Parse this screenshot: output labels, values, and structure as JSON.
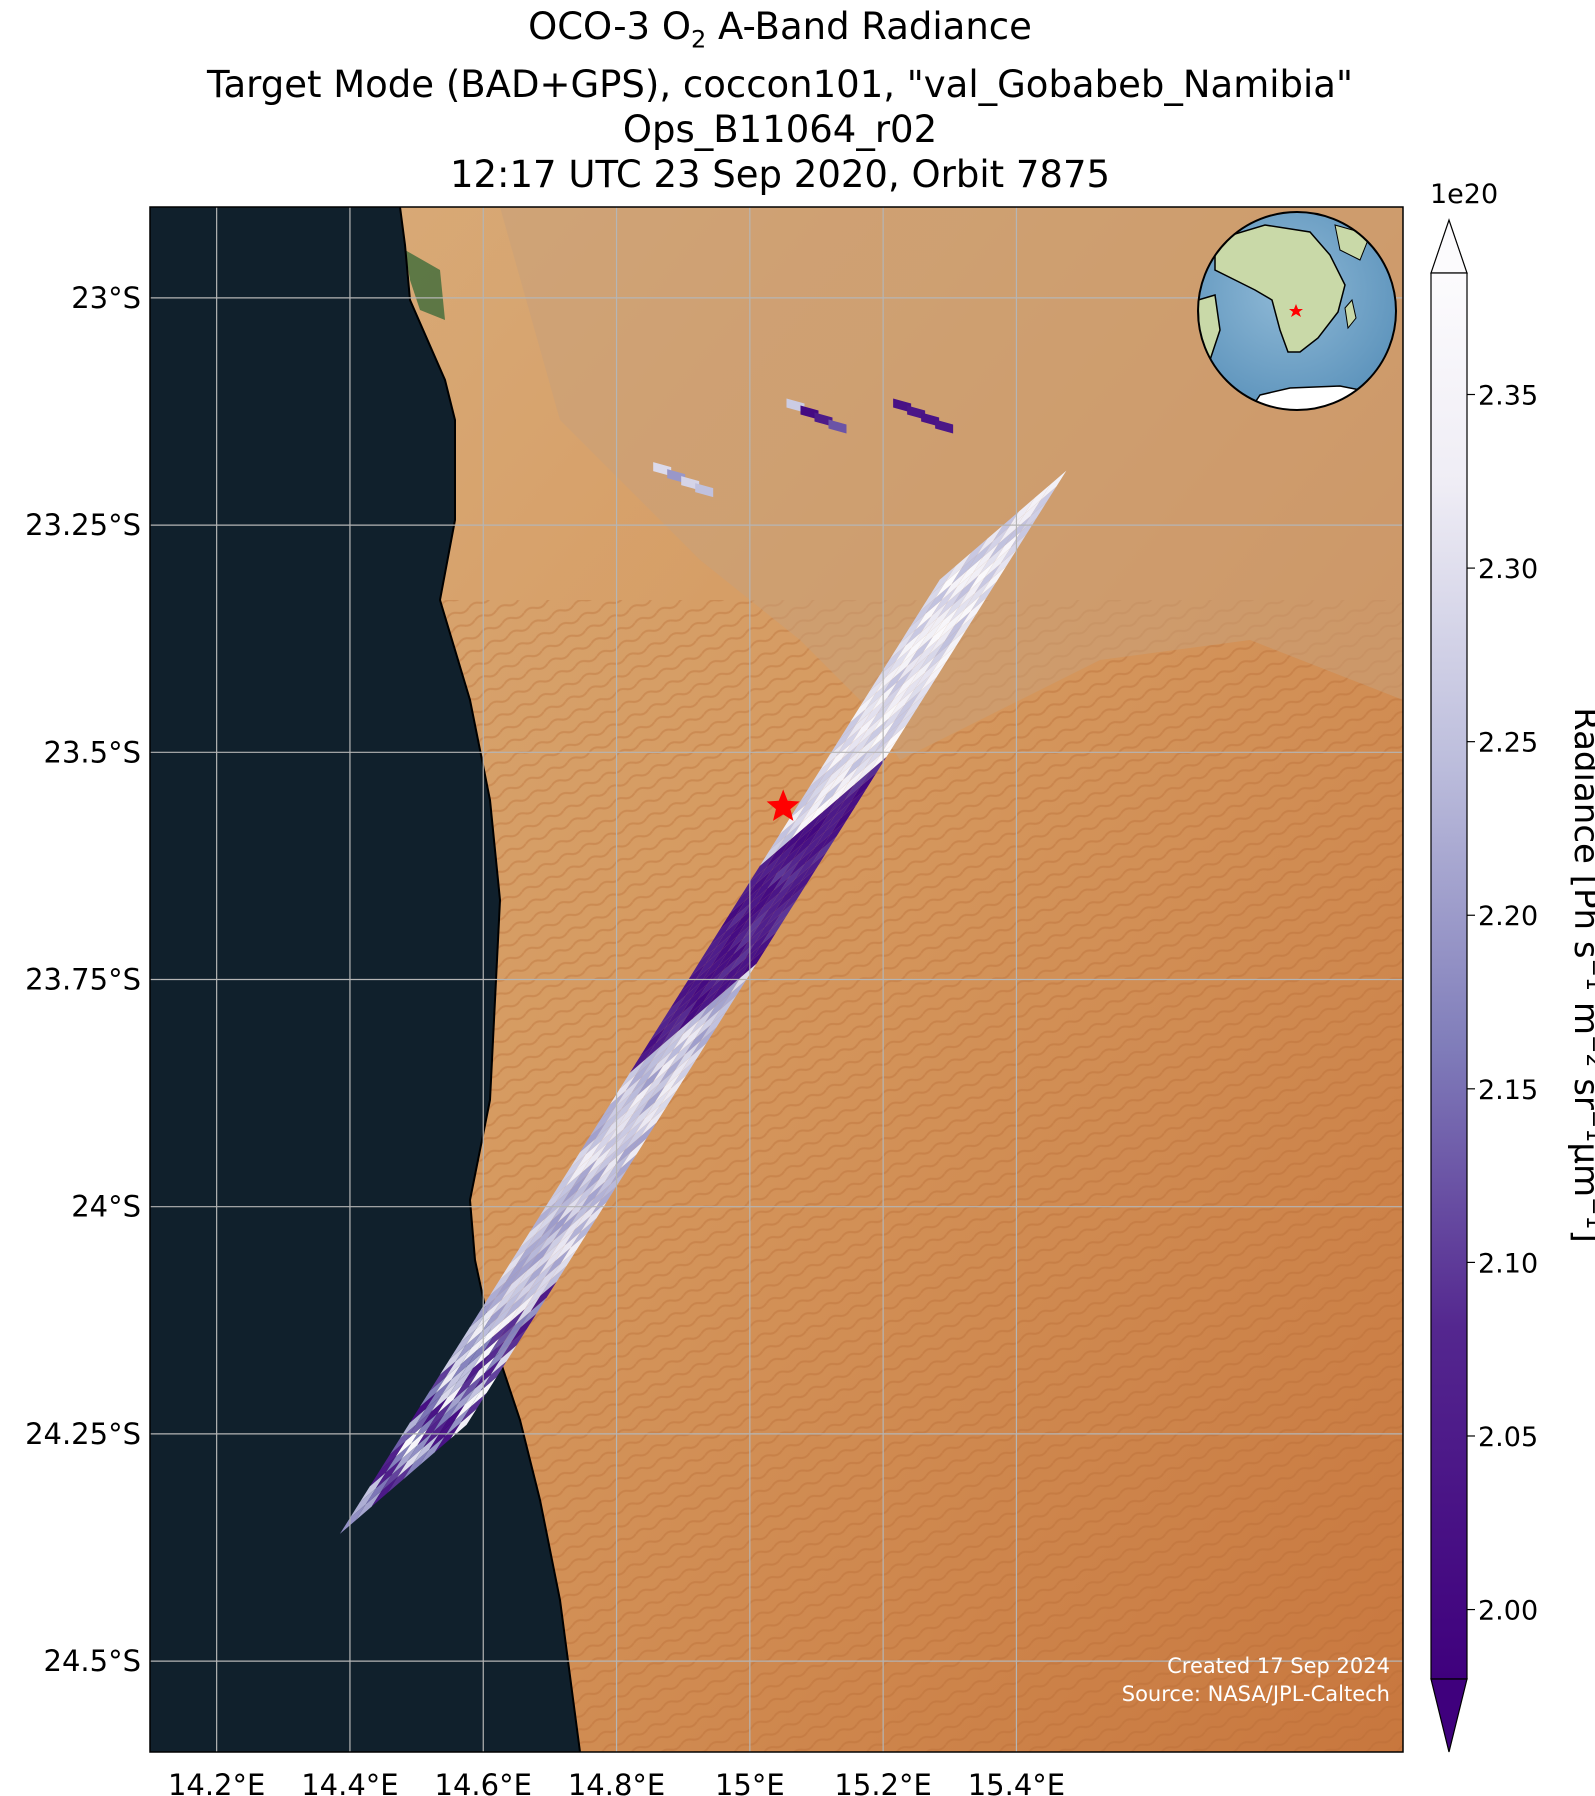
{
  "title": {
    "line1_pre": "OCO-3 O",
    "line1_sub": "2",
    "line1_post": " A-Band Radiance",
    "line2": "Target Mode (BAD+GPS), coccon101, \"val_Gobabeb_Namibia\"",
    "line3": "Ops_B11064_r02",
    "line4": "12:17 UTC 23 Sep 2020, Orbit 7875"
  },
  "map": {
    "lon_range": [
      14.1,
      15.98
    ],
    "lat_range": [
      -24.6,
      -22.9
    ],
    "lon_ticks": [
      {
        "value": 14.2,
        "label": "14.2°E"
      },
      {
        "value": 14.4,
        "label": "14.4°E"
      },
      {
        "value": 14.6,
        "label": "14.6°E"
      },
      {
        "value": 14.8,
        "label": "14.8°E"
      },
      {
        "value": 15.0,
        "label": "15°E"
      },
      {
        "value": 15.2,
        "label": "15.2°E"
      },
      {
        "value": 15.4,
        "label": "15.4°E"
      }
    ],
    "lat_ticks": [
      {
        "value": -23.0,
        "label": "23°S"
      },
      {
        "value": -23.25,
        "label": "23.25°S"
      },
      {
        "value": -23.5,
        "label": "23.5°S"
      },
      {
        "value": -23.75,
        "label": "23.75°S"
      },
      {
        "value": -24.0,
        "label": "24°S"
      },
      {
        "value": -24.25,
        "label": "24.25°S"
      },
      {
        "value": -24.5,
        "label": "24.5°S"
      }
    ],
    "target_site": {
      "lon": 15.05,
      "lat": -23.56,
      "marker": "red-star-icon"
    },
    "credit_line1": "Created 17 Sep 2024",
    "credit_line2": "Source: NASA/JPL-Caltech",
    "colors": {
      "ocean": "#10202c",
      "desert": "#d69a60",
      "coast_green": "#3e6b3a",
      "dune": "#cf7f43"
    }
  },
  "colorbar": {
    "label_pre": "Radiance [Ph s",
    "label_exp1": "−1",
    "label_m": " m",
    "label_exp2": "−2",
    "label_sr": " sr",
    "label_exp3": "−1",
    "label_um": "μm",
    "label_exp4": "−1",
    "label_post": "]",
    "multiplier": "1e20",
    "vmin": 1.98,
    "vmax": 2.385,
    "ticks": [
      {
        "value": 2.0,
        "label": "2.00"
      },
      {
        "value": 2.05,
        "label": "2.05"
      },
      {
        "value": 2.1,
        "label": "2.10"
      },
      {
        "value": 2.15,
        "label": "2.15"
      },
      {
        "value": 2.2,
        "label": "2.20"
      },
      {
        "value": 2.25,
        "label": "2.25"
      },
      {
        "value": 2.3,
        "label": "2.30"
      },
      {
        "value": 2.35,
        "label": "2.35"
      }
    ],
    "colormap": "Purples_r",
    "color_low": "#3f007d",
    "color_high": "#fcfbfd",
    "extend": "both"
  },
  "chart_data": {
    "type": "heatmap",
    "description_units": "Radiance values ×1e20 along OCO-3 target-mode swath",
    "swath_segments": [
      {
        "along_track_start_lat": -24.3,
        "along_track_end_lat": -24.12,
        "radiance_range": [
          2.0,
          2.38
        ],
        "mean": 2.15
      },
      {
        "along_track_start_lat": -24.12,
        "along_track_end_lat": -23.8,
        "radiance_range": [
          2.2,
          2.33
        ],
        "mean": 2.26
      },
      {
        "along_track_start_lat": -23.8,
        "along_track_end_lat": -23.56,
        "radiance_range": [
          2.0,
          2.1
        ],
        "mean": 2.03
      },
      {
        "along_track_start_lat": -23.56,
        "along_track_end_lat": -23.2,
        "radiance_range": [
          2.25,
          2.38
        ],
        "mean": 2.35
      }
    ],
    "isolated_patches": [
      {
        "lon": 14.9,
        "lat": -23.2,
        "radiance_range": [
          2.15,
          2.3
        ]
      },
      {
        "lon": 15.1,
        "lat": -23.13,
        "radiance_range": [
          2.0,
          2.38
        ]
      },
      {
        "lon": 15.26,
        "lat": -23.13,
        "radiance_range": [
          2.0,
          2.05
        ]
      }
    ]
  }
}
